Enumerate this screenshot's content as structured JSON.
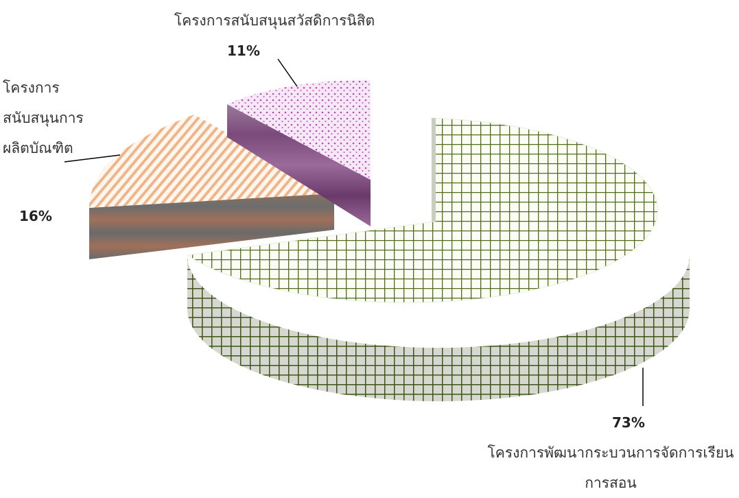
{
  "chart_data": {
    "type": "pie",
    "style": "3d-exploded",
    "title": "",
    "slices": [
      {
        "label": "โครงการพัฒนากระบวนการจัดการเรียนการสอน",
        "value": 73,
        "value_label": "73%",
        "color": "#4f6b1e",
        "pattern": "grid"
      },
      {
        "label": "โครงการสนับสนุนการผลิตบัณฑิต",
        "value": 16,
        "value_label": "16%",
        "color": "#e8a070",
        "pattern": "diagonal-stripes"
      },
      {
        "label": "โครงการสนับสนุนสวัสดิการนิสิต",
        "value": 11,
        "value_label": "11%",
        "color": "#b04fb0",
        "pattern": "dots"
      }
    ],
    "legend": "none"
  }
}
